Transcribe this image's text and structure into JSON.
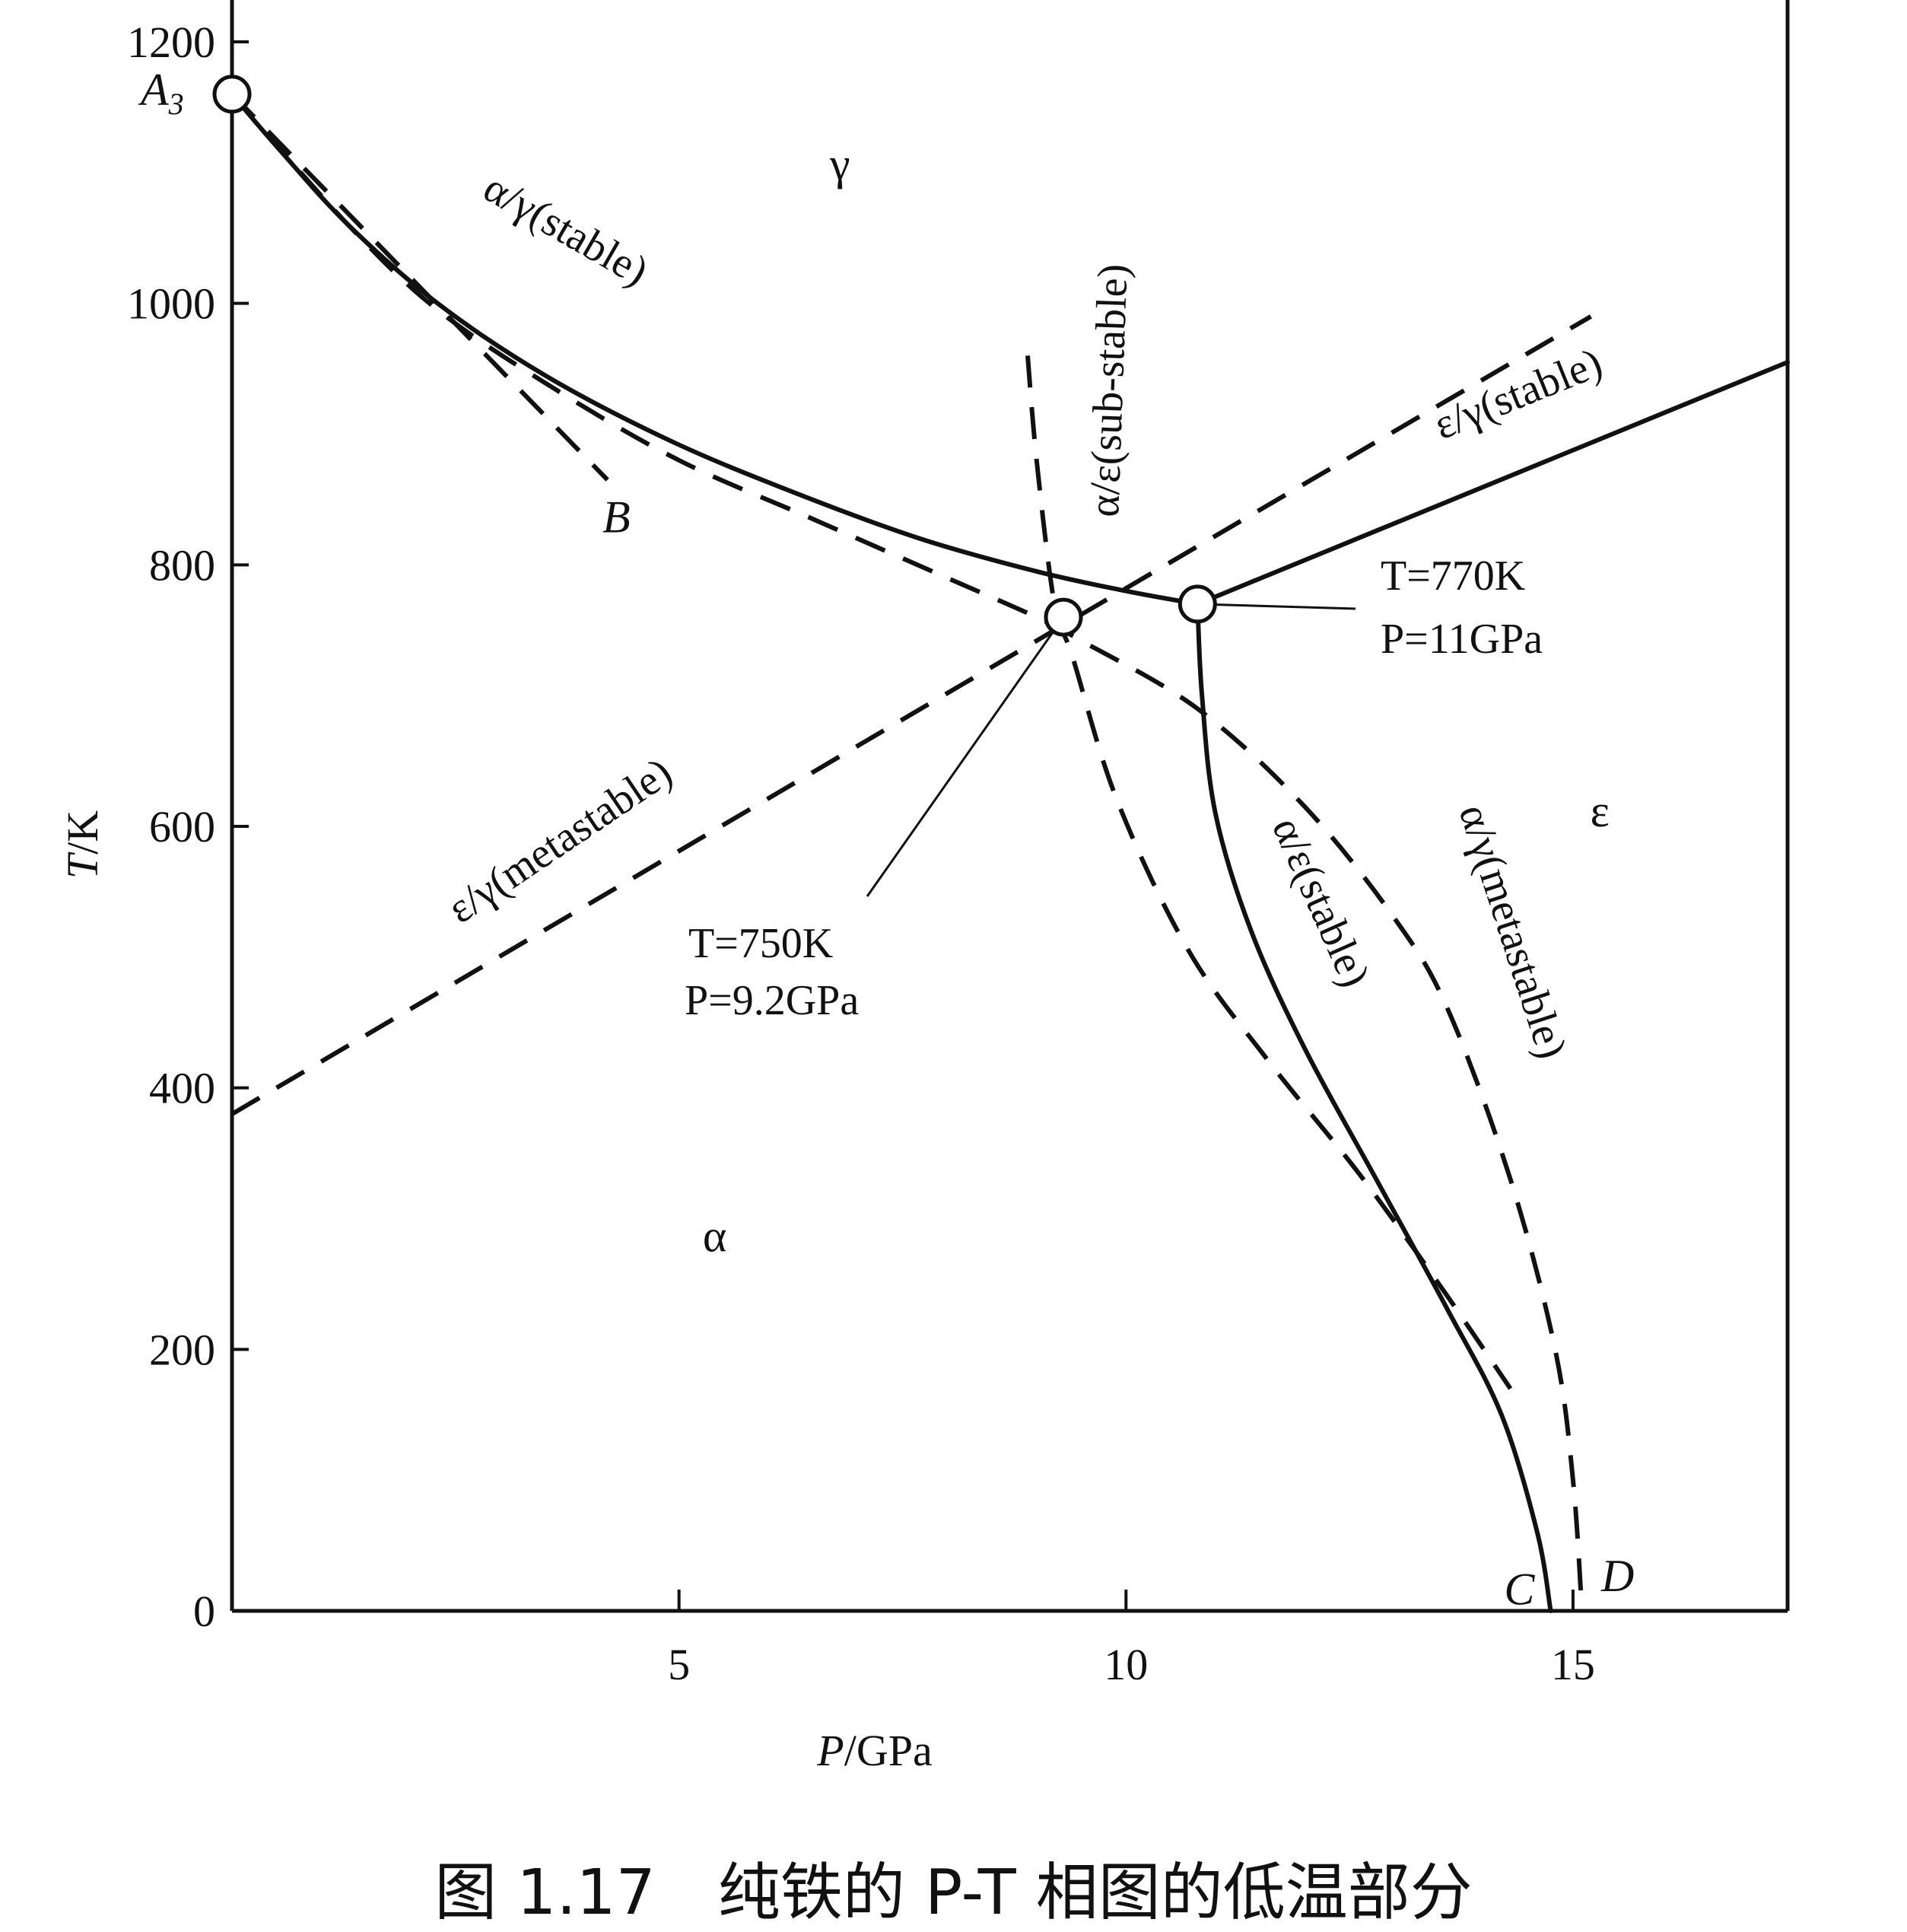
{
  "caption": "图 1.17　纯铁的 P-T 相图的低温部分",
  "chart_data": {
    "type": "line",
    "xlabel": "P/GPa",
    "ylabel": "T/K",
    "xlim": [
      0,
      17.4
    ],
    "ylim": [
      0,
      1200
    ],
    "x_ticks": [
      5,
      10,
      15
    ],
    "y_ticks": [
      0,
      200,
      400,
      600,
      800,
      1000,
      1200
    ],
    "grid": false,
    "curves": [
      {
        "name": "α/γ(stable)",
        "style": "solid",
        "points": [
          [
            0,
            1160
          ],
          [
            0.5,
            1120
          ],
          [
            1.3,
            1060
          ],
          [
            2.3,
            1000
          ],
          [
            3.5,
            945
          ],
          [
            4.9,
            895
          ],
          [
            6.3,
            855
          ],
          [
            7.7,
            820
          ],
          [
            9.0,
            795
          ],
          [
            10.0,
            780
          ],
          [
            10.8,
            770
          ]
        ]
      },
      {
        "name": "",
        "style": "dashed",
        "points": [
          [
            0,
            1160
          ],
          [
            1.3,
            1060
          ],
          [
            2.3,
            995
          ],
          [
            3.6,
            935
          ],
          [
            5.0,
            880
          ],
          [
            6.5,
            835
          ],
          [
            7.9,
            793
          ],
          [
            9.0,
            760
          ],
          [
            9.5,
            742
          ],
          [
            10.8,
            690
          ],
          [
            12.0,
            615
          ],
          [
            13.0,
            530
          ],
          [
            13.6,
            460
          ],
          [
            14.3,
            330
          ],
          [
            14.8,
            200
          ],
          [
            15.0,
            100
          ],
          [
            15.1,
            0
          ]
        ]
      },
      {
        "name": "",
        "style": "dashed",
        "points": [
          [
            0,
            1160
          ],
          [
            4.2,
            865
          ]
        ]
      },
      {
        "name": "ε/γ(stable)",
        "style": "solid",
        "points": [
          [
            10.8,
            770
          ],
          [
            17.4,
            955
          ]
        ]
      },
      {
        "name": "ε/γ(metastable)",
        "style": "dashed",
        "points": [
          [
            0,
            380
          ],
          [
            9.2,
            750
          ],
          [
            15.2,
            990
          ]
        ]
      },
      {
        "name": "α/ε(sub-stable)",
        "style": "dashed",
        "points": [
          [
            8.9,
            960
          ],
          [
            9.0,
            880
          ],
          [
            9.2,
            770
          ],
          [
            9.4,
            730
          ],
          [
            9.9,
            620
          ],
          [
            10.7,
            505
          ],
          [
            11.6,
            420
          ],
          [
            12.6,
            335
          ],
          [
            13.5,
            250
          ],
          [
            14.3,
            170
          ]
        ]
      },
      {
        "name": "α/ε(stable)",
        "style": "solid",
        "points": [
          [
            10.8,
            770
          ],
          [
            10.85,
            700
          ],
          [
            11.0,
            610
          ],
          [
            11.4,
            520
          ],
          [
            12.0,
            430
          ],
          [
            12.8,
            330
          ],
          [
            13.6,
            230
          ],
          [
            14.2,
            150
          ],
          [
            14.6,
            60
          ],
          [
            14.75,
            0
          ]
        ]
      }
    ],
    "points": [
      {
        "x": 0,
        "y": 1160,
        "label": "A3"
      },
      {
        "x": 9.3,
        "y": 760,
        "label": "T=750K\nP=9.2GPa"
      },
      {
        "x": 10.8,
        "y": 770,
        "label": "T=770K\nP=11GPa"
      }
    ],
    "phase_labels": [
      {
        "label": "γ",
        "x": 6.8,
        "y": 1095
      },
      {
        "label": "α",
        "x": 5.4,
        "y": 275
      },
      {
        "label": "ε",
        "x": 15.3,
        "y": 600
      }
    ],
    "end_labels": [
      {
        "label": "B",
        "x": 4.3,
        "y": 825
      },
      {
        "label": "C",
        "x": 14.4,
        "y": 5
      },
      {
        "label": "D",
        "x": 15.5,
        "y": 15
      }
    ],
    "annotations": {
      "t750": "T=750K",
      "p92": "P=9.2GPa",
      "t770": "T=770K",
      "p11": "P=11GPa"
    }
  }
}
